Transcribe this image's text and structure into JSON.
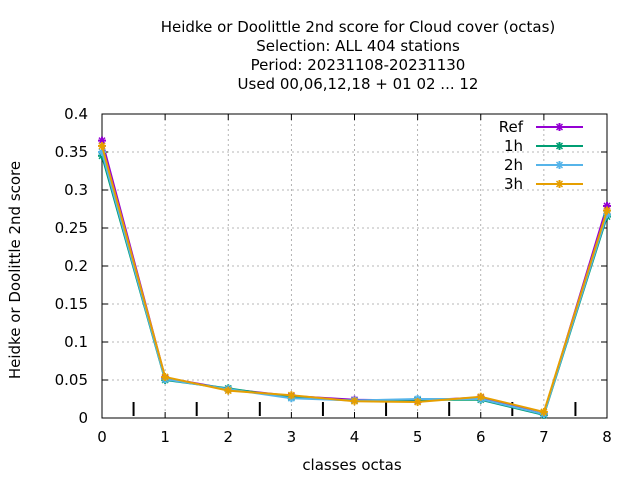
{
  "chart_data": {
    "type": "line",
    "title": [
      "Heidke or Doolittle 2nd score  for Cloud cover (octas)",
      "Selection: ALL    404 stations",
      "Period: 20231108-20231130",
      "Used  00,06,12,18 + 01 02 ... 12"
    ],
    "xlabel": "classes octas",
    "ylabel": "Heidke or Doolittle 2nd score",
    "xlim": [
      0,
      8
    ],
    "ylim": [
      0,
      0.4
    ],
    "x_ticks": [
      0,
      1,
      2,
      3,
      4,
      5,
      6,
      7,
      8
    ],
    "y_ticks": [
      0,
      0.05,
      0.1,
      0.15,
      0.2,
      0.25,
      0.3,
      0.35,
      0.4
    ],
    "y_tick_labels": [
      "0",
      "0.05",
      "0.1",
      "0.15",
      "0.2",
      "0.25",
      "0.3",
      "0.35",
      "0.4"
    ],
    "class_boundary_marks": [
      0.5,
      1.5,
      2.5,
      3.5,
      4.5,
      5.5,
      6.5,
      7.5
    ],
    "grid": true,
    "legend_position": "top-right",
    "x": [
      0,
      1,
      2,
      3,
      4,
      5,
      6,
      7,
      8
    ],
    "series": [
      {
        "name": "Ref",
        "color": "#9400d3",
        "values": [
          0.365,
          0.053,
          0.038,
          0.029,
          0.024,
          0.023,
          0.027,
          0.005,
          0.279
        ]
      },
      {
        "name": "1h",
        "color": "#009e73",
        "values": [
          0.345,
          0.05,
          0.039,
          0.027,
          0.023,
          0.024,
          0.024,
          0.004,
          0.265
        ]
      },
      {
        "name": "2h",
        "color": "#56b4e9",
        "values": [
          0.35,
          0.051,
          0.038,
          0.026,
          0.023,
          0.025,
          0.025,
          0.005,
          0.268
        ]
      },
      {
        "name": "3h",
        "color": "#e69f00",
        "values": [
          0.358,
          0.054,
          0.036,
          0.03,
          0.022,
          0.021,
          0.028,
          0.008,
          0.273
        ]
      }
    ]
  }
}
